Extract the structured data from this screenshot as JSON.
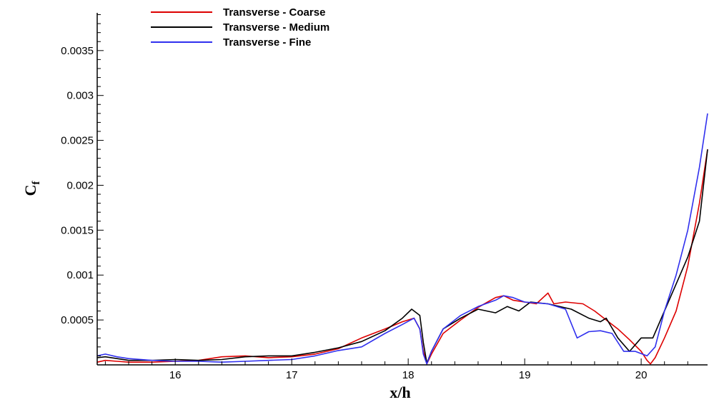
{
  "chart_data": {
    "type": "line",
    "xlabel": "x/h",
    "ylabel": "C",
    "ylabel_subscript": "f",
    "xlim": [
      15.33,
      20.57
    ],
    "ylim": [
      0,
      0.00392
    ],
    "xticks": [
      16,
      17,
      18,
      19,
      20
    ],
    "xtick_labels": [
      "16",
      "17",
      "18",
      "19",
      "20"
    ],
    "yticks": [
      0.0005,
      0.001,
      0.0015,
      0.002,
      0.0025,
      0.003,
      0.0035
    ],
    "ytick_labels": [
      "0.0005",
      "0.001",
      "0.0015",
      "0.002",
      "0.0025",
      "0.003",
      "0.0035"
    ],
    "grid": false,
    "legend_position": "top-left",
    "series": [
      {
        "name": "Transverse - Coarse",
        "color": "#dd0000",
        "x": [
          15.33,
          15.4,
          15.5,
          15.6,
          15.8,
          16.0,
          16.2,
          16.4,
          16.6,
          16.8,
          17.0,
          17.2,
          17.4,
          17.6,
          17.8,
          17.95,
          18.05,
          18.1,
          18.13,
          18.16,
          18.2,
          18.3,
          18.45,
          18.6,
          18.75,
          18.82,
          18.9,
          19.0,
          19.1,
          19.2,
          19.25,
          19.35,
          19.5,
          19.6,
          19.7,
          19.8,
          19.9,
          20.0,
          20.05,
          20.08,
          20.12,
          20.2,
          20.3,
          20.4,
          20.5,
          20.57
        ],
        "y": [
          3e-05,
          5e-05,
          4e-05,
          3e-05,
          3e-05,
          4e-05,
          5e-05,
          9e-05,
          0.0001,
          8e-05,
          9e-05,
          0.00012,
          0.00018,
          0.0003,
          0.0004,
          0.00048,
          0.00052,
          0.0004,
          0.00015,
          1e-05,
          0.00012,
          0.00035,
          0.0005,
          0.00064,
          0.00075,
          0.00077,
          0.00072,
          0.0007,
          0.00068,
          0.0008,
          0.00068,
          0.0007,
          0.00068,
          0.0006,
          0.0005,
          0.0004,
          0.00028,
          0.00015,
          5e-05,
          1e-05,
          8e-05,
          0.0003,
          0.0006,
          0.0011,
          0.0018,
          0.0024
        ]
      },
      {
        "name": "Transverse - Medium",
        "color": "#000000",
        "x": [
          15.33,
          15.4,
          15.5,
          15.6,
          15.8,
          16.0,
          16.2,
          16.4,
          16.6,
          16.8,
          17.0,
          17.2,
          17.4,
          17.6,
          17.8,
          17.95,
          18.03,
          18.1,
          18.13,
          18.16,
          18.2,
          18.3,
          18.45,
          18.6,
          18.75,
          18.85,
          18.95,
          19.05,
          19.2,
          19.4,
          19.55,
          19.65,
          19.7,
          19.8,
          19.9,
          20.0,
          20.1,
          20.2,
          20.3,
          20.4,
          20.5,
          20.57
        ],
        "y": [
          8e-05,
          9e-05,
          7e-05,
          5e-05,
          5e-05,
          6e-05,
          5e-05,
          6e-05,
          9e-05,
          0.0001,
          0.0001,
          0.00014,
          0.00019,
          0.00026,
          0.00038,
          0.00052,
          0.00062,
          0.00055,
          0.00025,
          2e-05,
          0.00015,
          0.0004,
          0.00052,
          0.00062,
          0.00058,
          0.00065,
          0.0006,
          0.0007,
          0.00068,
          0.00062,
          0.00052,
          0.00048,
          0.00052,
          0.0003,
          0.00015,
          0.0003,
          0.0003,
          0.0006,
          0.0009,
          0.0012,
          0.0016,
          0.0024
        ]
      },
      {
        "name": "Transverse - Fine",
        "color": "#3030ee",
        "x": [
          15.33,
          15.4,
          15.5,
          15.6,
          15.8,
          16.0,
          16.2,
          16.4,
          16.6,
          16.8,
          17.0,
          17.2,
          17.4,
          17.6,
          17.8,
          17.95,
          18.05,
          18.1,
          18.13,
          18.16,
          18.2,
          18.3,
          18.45,
          18.6,
          18.75,
          18.82,
          18.9,
          19.0,
          19.2,
          19.35,
          19.45,
          19.55,
          19.65,
          19.75,
          19.85,
          19.95,
          20.05,
          20.12,
          20.2,
          20.3,
          20.4,
          20.5,
          20.57
        ],
        "y": [
          0.0001,
          0.00012,
          9e-05,
          7e-05,
          5e-05,
          4e-05,
          4e-05,
          3e-05,
          4e-05,
          5e-05,
          6e-05,
          0.0001,
          0.00016,
          0.0002,
          0.00035,
          0.00045,
          0.00052,
          0.0004,
          0.00012,
          1e-05,
          0.00015,
          0.0004,
          0.00055,
          0.00065,
          0.00072,
          0.00077,
          0.00075,
          0.0007,
          0.00068,
          0.00062,
          0.0003,
          0.00037,
          0.00038,
          0.00035,
          0.00015,
          0.00015,
          0.0001,
          0.0002,
          0.0006,
          0.001,
          0.0015,
          0.0022,
          0.0028
        ]
      }
    ]
  }
}
